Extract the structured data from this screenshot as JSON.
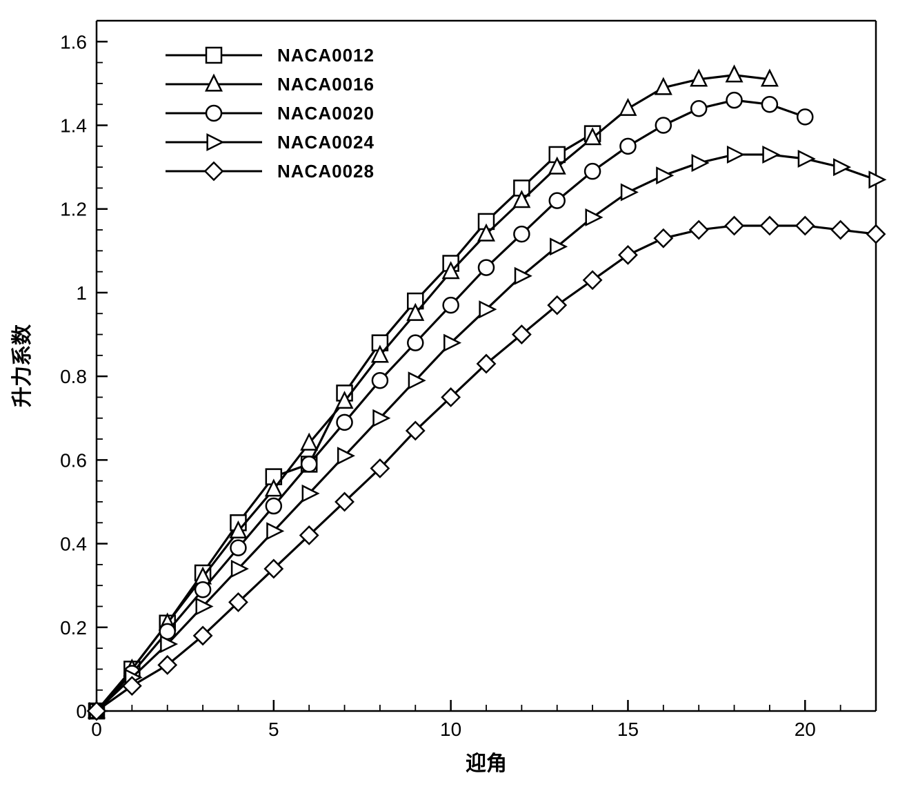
{
  "chart": {
    "type": "line",
    "background_color": "#ffffff",
    "line_color": "#000000",
    "marker_fill": "#ffffff",
    "line_width": 3.2,
    "marker_size": 11,
    "xaxis": {
      "label": "迎角",
      "min": 0,
      "max": 22,
      "major_ticks": [
        0,
        5,
        10,
        15,
        20
      ],
      "minor_step": 1,
      "label_fontsize": 30,
      "tick_fontsize": 28
    },
    "yaxis": {
      "label": "升力系数",
      "min": 0,
      "max": 1.65,
      "major_ticks": [
        0,
        0.2,
        0.4,
        0.6,
        0.8,
        1,
        1.2,
        1.4,
        1.6
      ],
      "minor_step": 0.05,
      "label_fontsize": 30,
      "tick_fontsize": 28
    },
    "legend": {
      "position": "top-left-inside",
      "items": [
        {
          "marker": "square",
          "label": "NACA0012"
        },
        {
          "marker": "triangle",
          "label": "NACA0016"
        },
        {
          "marker": "circle",
          "label": "NACA0020"
        },
        {
          "marker": "rtriangle",
          "label": "NACA0024"
        },
        {
          "marker": "diamond",
          "label": "NACA0028"
        }
      ]
    },
    "series": [
      {
        "name": "NACA0012",
        "marker": "square",
        "x": [
          0,
          1,
          2,
          3,
          4,
          5,
          6,
          7,
          8,
          9,
          10,
          11,
          12,
          13,
          14
        ],
        "y": [
          0.0,
          0.1,
          0.21,
          0.33,
          0.45,
          0.56,
          0.59,
          0.76,
          0.88,
          0.98,
          1.07,
          1.17,
          1.25,
          1.33,
          1.38
        ]
      },
      {
        "name": "NACA0016",
        "marker": "triangle",
        "x": [
          0,
          1,
          2,
          3,
          4,
          5,
          6,
          7,
          8,
          9,
          10,
          11,
          12,
          13,
          14,
          15,
          16,
          17,
          18,
          19
        ],
        "y": [
          0.0,
          0.1,
          0.21,
          0.32,
          0.43,
          0.53,
          0.64,
          0.74,
          0.85,
          0.95,
          1.05,
          1.14,
          1.22,
          1.3,
          1.37,
          1.44,
          1.49,
          1.51,
          1.52,
          1.51
        ]
      },
      {
        "name": "NACA0020",
        "marker": "circle",
        "x": [
          0,
          1,
          2,
          3,
          4,
          5,
          6,
          7,
          8,
          9,
          10,
          11,
          12,
          13,
          14,
          15,
          16,
          17,
          18,
          19,
          20
        ],
        "y": [
          0.0,
          0.09,
          0.19,
          0.29,
          0.39,
          0.49,
          0.59,
          0.69,
          0.79,
          0.88,
          0.97,
          1.06,
          1.14,
          1.22,
          1.29,
          1.35,
          1.4,
          1.44,
          1.46,
          1.45,
          1.42
        ]
      },
      {
        "name": "NACA0024",
        "marker": "rtriangle",
        "x": [
          0,
          1,
          2,
          3,
          4,
          5,
          6,
          7,
          8,
          9,
          10,
          11,
          12,
          13,
          14,
          15,
          16,
          17,
          18,
          19,
          20,
          21,
          22
        ],
        "y": [
          0.0,
          0.08,
          0.16,
          0.25,
          0.34,
          0.43,
          0.52,
          0.61,
          0.7,
          0.79,
          0.88,
          0.96,
          1.04,
          1.11,
          1.18,
          1.24,
          1.28,
          1.31,
          1.33,
          1.33,
          1.32,
          1.3,
          1.27
        ]
      },
      {
        "name": "NACA0028",
        "marker": "diamond",
        "x": [
          0,
          1,
          2,
          3,
          4,
          5,
          6,
          7,
          8,
          9,
          10,
          11,
          12,
          13,
          14,
          15,
          16,
          17,
          18,
          19,
          20,
          21,
          22
        ],
        "y": [
          0.0,
          0.06,
          0.11,
          0.18,
          0.26,
          0.34,
          0.42,
          0.5,
          0.58,
          0.67,
          0.75,
          0.83,
          0.9,
          0.97,
          1.03,
          1.09,
          1.13,
          1.15,
          1.16,
          1.16,
          1.16,
          1.15,
          1.14
        ]
      }
    ]
  }
}
